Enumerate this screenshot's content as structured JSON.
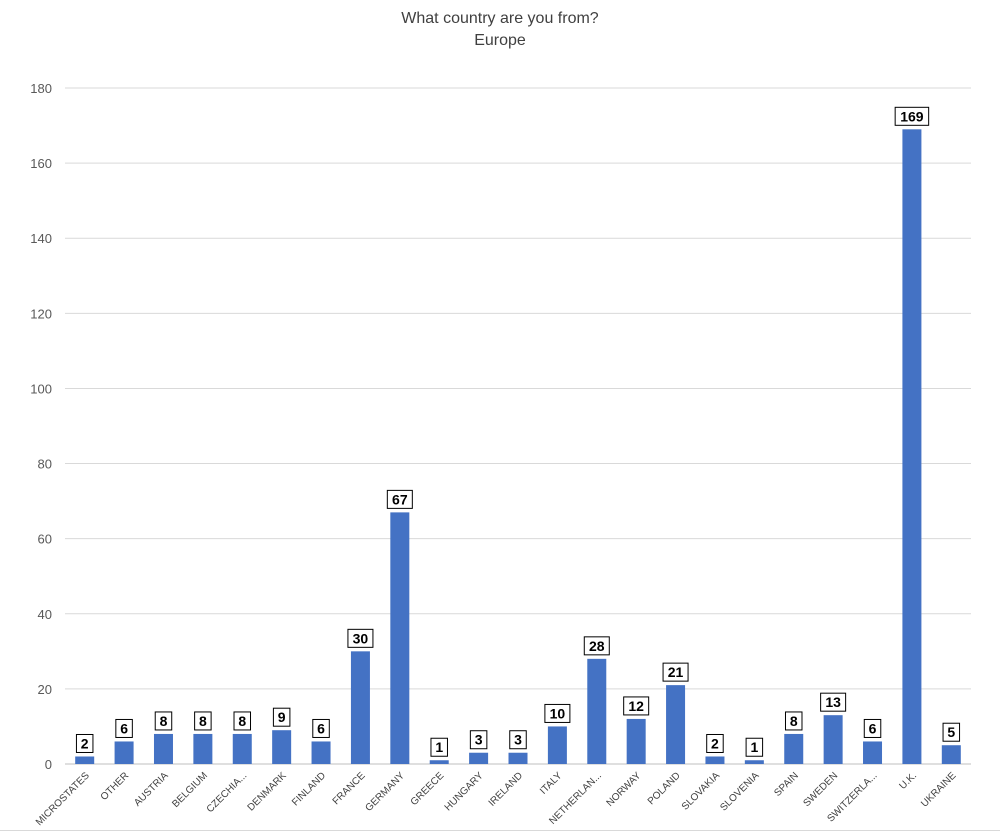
{
  "chart_data": {
    "type": "bar",
    "title": "What country are you from?",
    "subtitle": "Europe",
    "categories": [
      "MICROSTATES",
      "OTHER",
      "AUSTRIA",
      "BELGIUM",
      "CZECHIA...",
      "DENMARK",
      "FINLAND",
      "FRANCE",
      "GERMANY",
      "GREECE",
      "HUNGARY",
      "IRELAND",
      "ITALY",
      "NETHERLAN...",
      "NORWAY",
      "POLAND",
      "SLOVAKIA",
      "SLOVENIA",
      "SPAIN",
      "SWEDEN",
      "SWITZERLA...",
      "U.K.",
      "UKRAINE"
    ],
    "values": [
      2,
      6,
      8,
      8,
      8,
      9,
      6,
      30,
      67,
      1,
      3,
      3,
      10,
      28,
      12,
      21,
      2,
      1,
      8,
      13,
      6,
      169,
      5
    ],
    "ylim": [
      0,
      180
    ],
    "yticks": [
      0,
      20,
      40,
      60,
      80,
      100,
      120,
      140,
      160,
      180
    ],
    "grid": true,
    "bar_color": "#4472c4",
    "xlabel": "",
    "ylabel": ""
  }
}
